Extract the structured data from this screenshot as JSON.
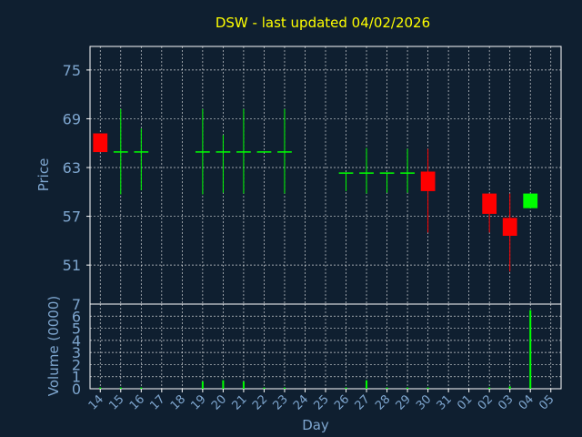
{
  "title": "DSW - last updated 04/02/2026",
  "colors": {
    "background": "#0f1f30",
    "axis": "#ffffff",
    "grid": "#ffffff",
    "label": "#7ea6cf",
    "title": "#ffff00",
    "up": "#00ff00",
    "down": "#ff0000"
  },
  "chart_data": [
    {
      "type": "candlestick",
      "ylabel": "Price",
      "ylim": [
        46.2,
        77.9
      ],
      "yticks": [
        51,
        57,
        63,
        69,
        75
      ],
      "grid": true,
      "candles": [
        {
          "x": 14,
          "open": 67.2,
          "high": 67.2,
          "low": 64.9,
          "close": 64.9
        },
        {
          "x": 15,
          "open": 65.0,
          "high": 70.2,
          "low": 59.7,
          "close": 65.0
        },
        {
          "x": 16,
          "open": 65.0,
          "high": 67.8,
          "low": 60.2,
          "close": 65.0
        },
        {
          "x": 19,
          "open": 65.0,
          "high": 70.2,
          "low": 59.7,
          "close": 65.0
        },
        {
          "x": 20,
          "open": 65.0,
          "high": 67.0,
          "low": 59.9,
          "close": 65.0
        },
        {
          "x": 21,
          "open": 65.0,
          "high": 70.2,
          "low": 59.8,
          "close": 65.0
        },
        {
          "x": 22,
          "open": 65.0,
          "high": 65.0,
          "low": 65.0,
          "close": 65.0
        },
        {
          "x": 23,
          "open": 65.0,
          "high": 70.2,
          "low": 59.8,
          "close": 65.0
        },
        {
          "x": 26,
          "open": 62.4,
          "high": 62.4,
          "low": 60.1,
          "close": 62.4
        },
        {
          "x": 27,
          "open": 62.4,
          "high": 65.4,
          "low": 59.8,
          "close": 62.4
        },
        {
          "x": 28,
          "open": 62.4,
          "high": 62.4,
          "low": 59.9,
          "close": 62.4
        },
        {
          "x": 29,
          "open": 62.4,
          "high": 65.3,
          "low": 59.9,
          "close": 62.4
        },
        {
          "x": 30,
          "open": 62.5,
          "high": 65.3,
          "low": 55.0,
          "close": 60.1
        },
        {
          "x": 2,
          "open": 59.8,
          "high": 59.8,
          "low": 55.0,
          "close": 57.3
        },
        {
          "x": 3,
          "open": 56.8,
          "high": 59.8,
          "low": 50.2,
          "close": 54.6
        },
        {
          "x": 4,
          "open": 58.0,
          "high": 59.8,
          "low": 58.0,
          "close": 59.8
        }
      ]
    },
    {
      "type": "bar",
      "ylabel": "Volume (0000)",
      "ylim": [
        0,
        7
      ],
      "yticks": [
        0,
        1,
        2,
        3,
        4,
        5,
        6,
        7
      ],
      "grid": true,
      "xlabel": "Day",
      "categories": [
        "14",
        "15",
        "16",
        "17",
        "18",
        "19",
        "20",
        "21",
        "22",
        "23",
        "24",
        "25",
        "26",
        "27",
        "28",
        "29",
        "30",
        "31",
        "01",
        "02",
        "03",
        "04",
        "05"
      ],
      "values": [
        0.1,
        0.1,
        0.1,
        0,
        0,
        0.6,
        0.7,
        0.6,
        0.1,
        0.1,
        0,
        0,
        0.1,
        0.7,
        0.1,
        0.1,
        0.1,
        0,
        0,
        0.1,
        0.2,
        6.5,
        0
      ]
    }
  ]
}
